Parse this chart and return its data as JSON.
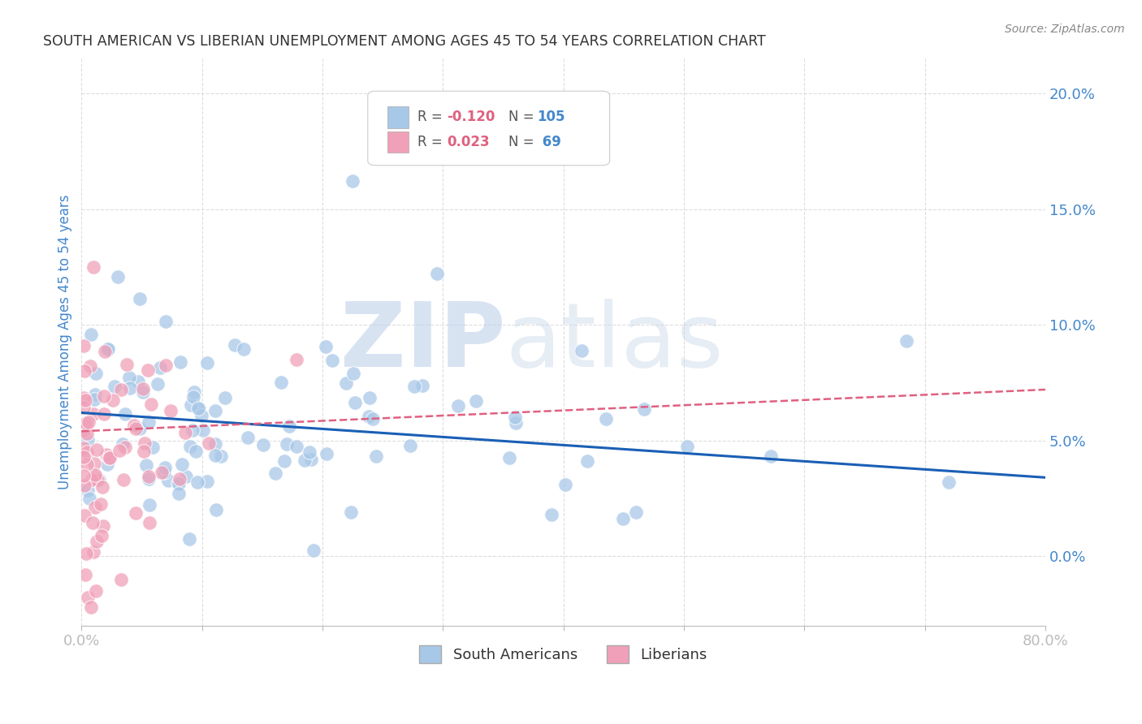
{
  "title": "SOUTH AMERICAN VS LIBERIAN UNEMPLOYMENT AMONG AGES 45 TO 54 YEARS CORRELATION CHART",
  "source": "Source: ZipAtlas.com",
  "ylabel": "Unemployment Among Ages 45 to 54 years",
  "xlim": [
    0.0,
    0.8
  ],
  "ylim": [
    -0.03,
    0.215
  ],
  "xticks": [
    0.0,
    0.1,
    0.2,
    0.3,
    0.4,
    0.5,
    0.6,
    0.7,
    0.8
  ],
  "yticks": [
    0.0,
    0.05,
    0.1,
    0.15,
    0.2
  ],
  "ytick_labels_right": [
    "0.0%",
    "5.0%",
    "10.0%",
    "15.0%",
    "20.0%"
  ],
  "xtick_labels": [
    "0.0%",
    "",
    "",
    "",
    "",
    "",
    "",
    "",
    "80.0%"
  ],
  "blue_N": 105,
  "pink_N": 69,
  "blue_color": "#a8c8e8",
  "pink_color": "#f0a0b8",
  "blue_line_color": "#1a5fb5",
  "pink_line_color": "#e06080",
  "watermark_text": "ZIPatlas",
  "watermark_color": "#d0dff5",
  "background_color": "#ffffff",
  "grid_color": "#dddddd",
  "title_color": "#333333",
  "axis_label_color": "#4488cc",
  "source_color": "#888888",
  "seed": 7,
  "blue_line_start_y": 0.062,
  "blue_line_end_y": 0.034,
  "pink_line_start_y": 0.054,
  "pink_line_end_y": 0.072
}
